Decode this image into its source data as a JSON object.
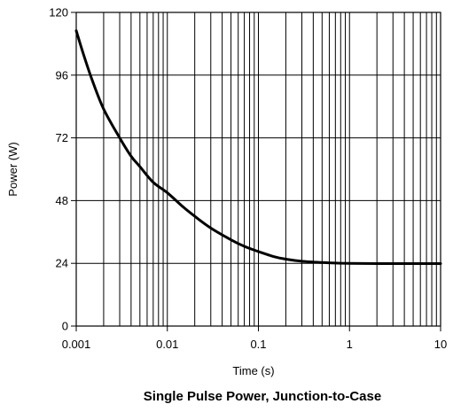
{
  "chart_data": {
    "type": "line",
    "title": "Single Pulse Power, Junction-to-Case",
    "xlabel": "Time (s)",
    "ylabel": "Power (W)",
    "x_scale": "log",
    "xlim": [
      0.001,
      10
    ],
    "ylim": [
      0,
      120
    ],
    "grid": true,
    "x_ticks": [
      0.001,
      0.01,
      0.1,
      1,
      10
    ],
    "x_tick_labels": [
      "0.001",
      "0.01",
      "0.1",
      "1",
      "10"
    ],
    "y_ticks": [
      0,
      24,
      48,
      72,
      96,
      120
    ],
    "y_tick_labels": [
      "0",
      "24",
      "48",
      "72",
      "96",
      "120"
    ],
    "series": [
      {
        "x": [
          0.001,
          0.0012,
          0.0015,
          0.002,
          0.003,
          0.004,
          0.005,
          0.007,
          0.01,
          0.015,
          0.02,
          0.03,
          0.05,
          0.07,
          0.1,
          0.15,
          0.2,
          0.3,
          0.5,
          0.7,
          1,
          2,
          3,
          5,
          10
        ],
        "y": [
          113,
          104,
          94,
          83,
          72,
          65,
          61,
          55,
          51,
          45.5,
          42,
          37.5,
          33,
          30.5,
          28.5,
          26.5,
          25.6,
          24.8,
          24.3,
          24.1,
          24,
          23.9,
          23.9,
          23.9,
          23.9
        ]
      }
    ],
    "colors": {
      "line": "#000000",
      "grid": "#000000",
      "background": "#ffffff"
    }
  }
}
